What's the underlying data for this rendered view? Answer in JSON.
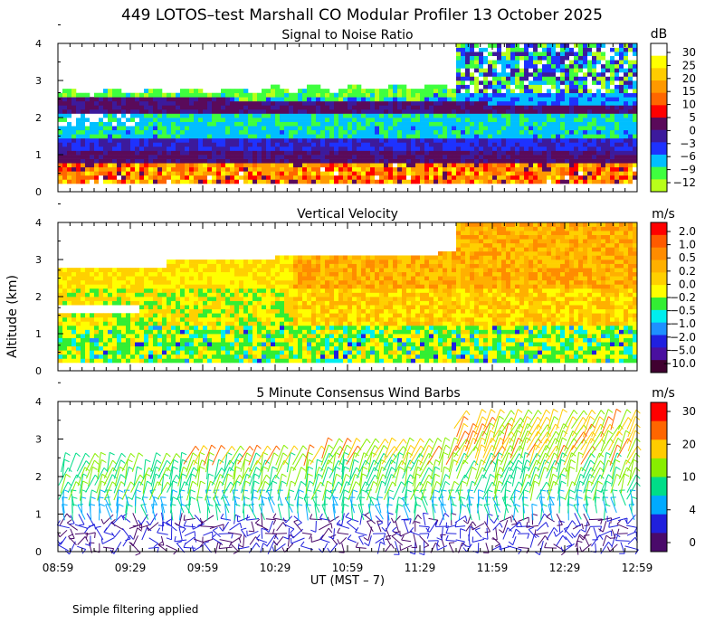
{
  "figure": {
    "title": "449 LOTOS–test Marshall CO Modular Profiler 13 October 2025",
    "ylabel": "Altitude (km)",
    "xlabel": "UT  (MST – 7)",
    "x_ticks": [
      "08:59",
      "09:29",
      "09:59",
      "10:29",
      "10:59",
      "11:29",
      "11:59",
      "12:29",
      "12:59"
    ],
    "y_ticks": [
      "0",
      "1",
      "2",
      "3",
      "4"
    ],
    "note": "Simple filtering applied"
  },
  "chart_data": [
    {
      "type": "heatmap",
      "title": "Signal to Noise Ratio",
      "x": [
        "08:59",
        "09:29",
        "09:59",
        "10:29",
        "10:59",
        "11:29",
        "11:59",
        "12:29",
        "12:59"
      ],
      "ylim": [
        0,
        4
      ],
      "ylabel": "Altitude (km)",
      "colorbar": {
        "unit": "dB",
        "labels": [
          "30",
          "25",
          "20",
          "15",
          "10",
          "5",
          "0",
          "−3",
          "−6",
          "−9",
          "−12"
        ],
        "colors": [
          "#ffffff",
          "#ffff00",
          "#ffcc00",
          "#ff9900",
          "#ff6600",
          "#ff0000",
          "#5a0a5a",
          "#3c1a9c",
          "#1e32ff",
          "#00bfff",
          "#3fff3f",
          "#b8ff1a"
        ]
      }
    },
    {
      "type": "heatmap",
      "title": "Vertical Velocity",
      "x": [
        "08:59",
        "09:29",
        "09:59",
        "10:29",
        "10:59",
        "11:29",
        "11:59",
        "12:29",
        "12:59"
      ],
      "ylim": [
        0,
        4
      ],
      "ylabel": "Altitude (km)",
      "colorbar": {
        "unit": "m/s",
        "labels": [
          "2.0",
          "1.0",
          "0.5",
          "0.2",
          "0.0",
          "−0.2",
          "−0.5",
          "−1.0",
          "−2.0",
          "−5.0",
          "−10.0"
        ],
        "colors": [
          "#ff0000",
          "#ff5a00",
          "#ff8c00",
          "#ffb000",
          "#ffd000",
          "#ffff00",
          "#33ee33",
          "#00eeee",
          "#1e90ff",
          "#2020e0",
          "#4a10a0",
          "#400030"
        ]
      }
    },
    {
      "type": "barbs",
      "title": "5 Minute Consensus Wind Barbs",
      "x": [
        "08:59",
        "09:29",
        "09:59",
        "10:29",
        "10:59",
        "11:29",
        "11:59",
        "12:29",
        "12:59"
      ],
      "ylim": [
        0,
        4
      ],
      "ylabel": "Altitude (km)",
      "colorbar": {
        "unit": "m/s",
        "labels": [
          "30",
          "20",
          "10",
          "4",
          "0"
        ],
        "colors": [
          "#ff0000",
          "#ff6600",
          "#ffcc00",
          "#88ee00",
          "#00dd88",
          "#00aaff",
          "#2020dd",
          "#4a0a6a"
        ]
      }
    }
  ]
}
